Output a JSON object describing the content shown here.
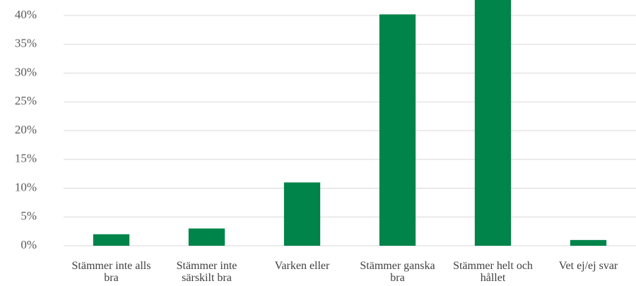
{
  "chart_data": {
    "type": "bar",
    "categories": [
      "Stämmer inte alls bra",
      "Stämmer inte särskilt bra",
      "Varken eller",
      "Stämmer ganska bra",
      "Stämmer helt och hållet",
      "Vet ej/ej svar"
    ],
    "values": [
      2,
      3,
      11,
      40.2,
      43,
      1
    ],
    "color": "#00844a",
    "ylim": [
      0,
      42.7
    ],
    "yticks": [
      {
        "value": 0,
        "label": "0%"
      },
      {
        "value": 5,
        "label": "5%"
      },
      {
        "value": 10,
        "label": "10%"
      },
      {
        "value": 15,
        "label": "15%"
      },
      {
        "value": 20,
        "label": "20%"
      },
      {
        "value": 25,
        "label": "25%"
      },
      {
        "value": 30,
        "label": "30%"
      },
      {
        "value": 35,
        "label": "35%"
      },
      {
        "value": 40,
        "label": "40%"
      }
    ],
    "grid": true
  }
}
